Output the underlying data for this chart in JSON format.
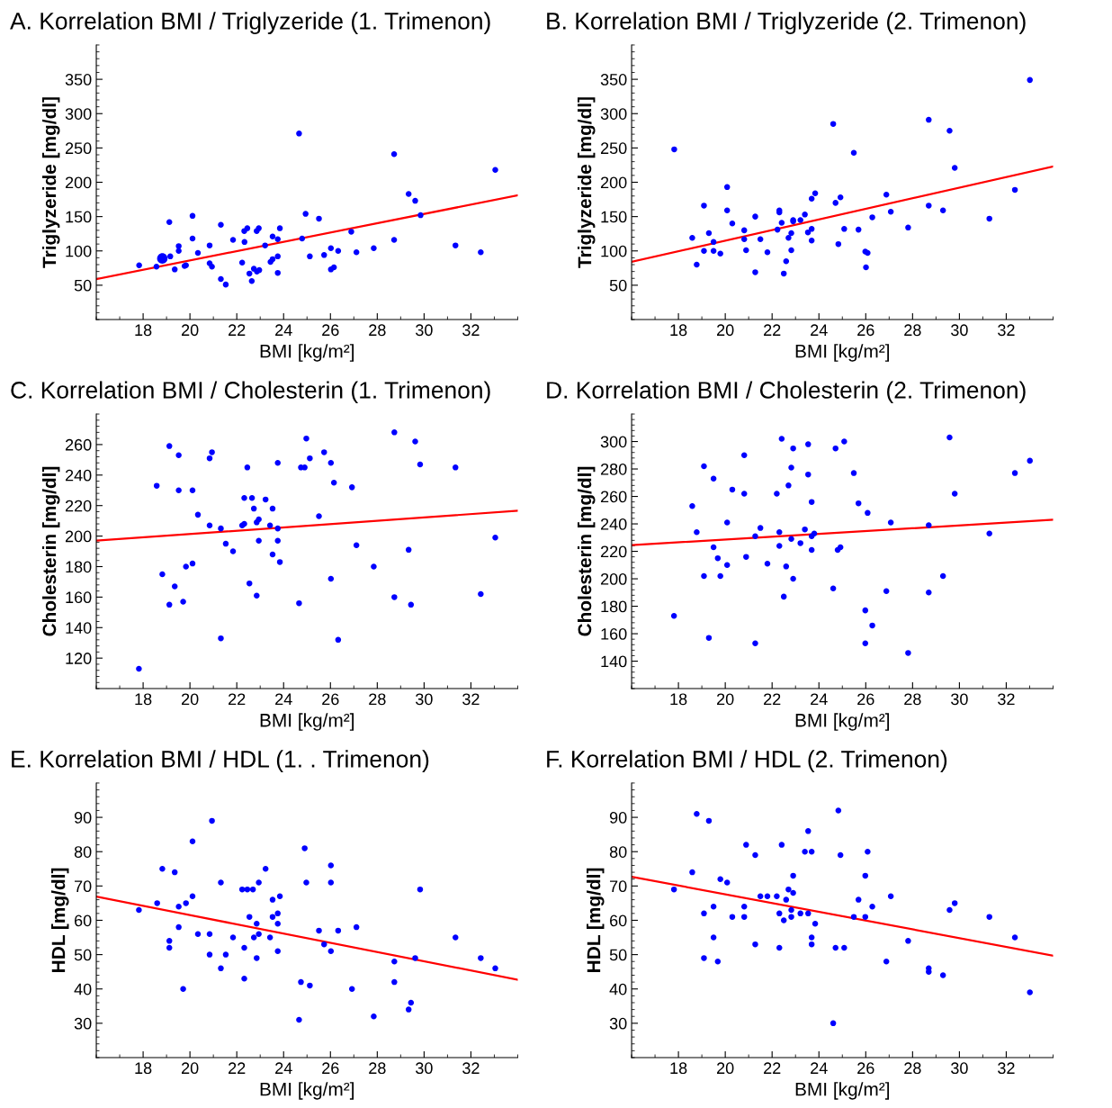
{
  "chart_data": [
    {
      "type": "scatter",
      "title": "A. Korrelation BMI / Triglyzeride (1. Trimenon)",
      "xlabel": "BMI [kg/m²]",
      "ylabel": "Triglyzeride [mg/dl]",
      "xlim": [
        16,
        34
      ],
      "xticks": [
        18,
        20,
        22,
        24,
        26,
        28,
        30,
        32
      ],
      "ylim": [
        0,
        400
      ],
      "yticks": [
        50,
        100,
        150,
        200,
        250,
        300,
        350
      ],
      "grid": false,
      "legend": false,
      "series": [
        {
          "type": "scatter",
          "color": "#0000ff",
          "marker": "circle",
          "x": [
            17.83,
            18.57,
            19.12,
            19.16,
            19.35,
            19.52,
            19.52,
            19.77,
            19.83,
            20.11,
            20.11,
            20.34,
            20.84,
            20.84,
            20.94,
            21.32,
            21.32,
            21.53,
            21.84,
            22.23,
            22.32,
            22.33,
            22.45,
            22.54,
            22.64,
            22.73,
            22.85,
            22.94,
            22.86,
            22.96,
            23.21,
            23.44,
            23.53,
            23.53,
            23.75,
            23.75,
            23.75,
            23.84,
            24.66,
            24.79,
            24.94,
            25.12,
            25.51,
            25.73,
            26.02,
            26.02,
            26.15,
            26.33,
            26.89,
            27.11,
            27.85,
            28.72,
            28.72,
            29.34,
            29.62,
            29.85,
            31.34,
            32.42,
            33.04
          ],
          "values": [
            79,
            77,
            142,
            92,
            73,
            107,
            100,
            78,
            79,
            151,
            118,
            97,
            108,
            82,
            77,
            138,
            59,
            51,
            116,
            83,
            129,
            113,
            133,
            67,
            56,
            74,
            129,
            133,
            70,
            72,
            108,
            84,
            121,
            88,
            117,
            92,
            68,
            133,
            271,
            118,
            154,
            92,
            147,
            94,
            104,
            73,
            76,
            100,
            128,
            98,
            104,
            241,
            116,
            183,
            173,
            152,
            108,
            98,
            218
          ]
        },
        {
          "type": "scatter",
          "color": "#0000ff",
          "marker": "circle",
          "x": [
            18.82
          ],
          "values": [
            89
          ]
        },
        {
          "type": "line",
          "color": "#ff0000",
          "x": [
            16,
            34
          ],
          "values": [
            59,
            181
          ]
        }
      ]
    },
    {
      "type": "scatter",
      "title": "B. Korrelation BMI / Triglyzeride (2. Trimenon)",
      "xlabel": "BMI [kg/m²]",
      "ylabel": "Triglyzeride [mg/dl]",
      "xlim": [
        16,
        34
      ],
      "xticks": [
        18,
        20,
        22,
        24,
        26,
        28,
        30,
        32
      ],
      "ylim": [
        0,
        400
      ],
      "yticks": [
        50,
        100,
        150,
        200,
        250,
        300,
        350
      ],
      "grid": false,
      "legend": false,
      "series": [
        {
          "type": "scatter",
          "color": "#0000ff",
          "marker": "circle",
          "x": [
            17.82,
            18.59,
            18.78,
            19.09,
            19.09,
            19.3,
            19.5,
            19.5,
            19.79,
            20.08,
            20.08,
            20.3,
            20.81,
            20.81,
            20.89,
            21.28,
            21.28,
            21.5,
            21.8,
            22.23,
            22.31,
            22.31,
            22.41,
            22.6,
            22.5,
            22.7,
            22.82,
            22.82,
            22.9,
            22.9,
            23.21,
            23.4,
            23.53,
            23.69,
            23.69,
            23.69,
            23.84,
            24.61,
            24.71,
            24.83,
            24.92,
            25.08,
            25.49,
            25.69,
            25.98,
            26.08,
            26.01,
            26.28,
            26.88,
            27.07,
            27.81,
            28.69,
            28.69,
            29.3,
            29.58,
            29.8,
            31.28,
            32.37,
            33.01
          ],
          "values": [
            248,
            119,
            80,
            166,
            100,
            126,
            113,
            100,
            96,
            193,
            159,
            140,
            130,
            117,
            101,
            150,
            69,
            117,
            98,
            131,
            159,
            156,
            141,
            85,
            67,
            119,
            126,
            101,
            145,
            143,
            145,
            153,
            127,
            132,
            115,
            176,
            184,
            285,
            170,
            110,
            178,
            132,
            243,
            131,
            99,
            97,
            76,
            149,
            182,
            157,
            134,
            291,
            166,
            159,
            275,
            221,
            147,
            189,
            349
          ]
        },
        {
          "type": "line",
          "color": "#ff0000",
          "x": [
            16,
            34
          ],
          "values": [
            84,
            223
          ]
        }
      ]
    },
    {
      "type": "scatter",
      "title": "C. Korrelation BMI / Cholesterin (1. Trimenon)",
      "xlabel": "BMI [kg/m²]",
      "ylabel": "Cholesterin [mg/dl]",
      "xlim": [
        16,
        34
      ],
      "xticks": [
        18,
        20,
        22,
        24,
        26,
        28,
        30,
        32
      ],
      "ylim": [
        100,
        280
      ],
      "yticks": [
        120,
        140,
        160,
        180,
        200,
        220,
        240,
        260
      ],
      "grid": false,
      "legend": false,
      "series": [
        {
          "type": "scatter",
          "color": "#0000ff",
          "marker": "circle",
          "x": [
            17.82,
            18.58,
            18.82,
            19.12,
            19.12,
            19.35,
            19.52,
            19.52,
            19.71,
            19.83,
            20.11,
            20.11,
            20.34,
            20.84,
            20.94,
            20.84,
            21.32,
            21.32,
            21.53,
            21.84,
            22.23,
            22.32,
            22.32,
            22.45,
            22.54,
            22.65,
            22.73,
            22.85,
            22.94,
            22.94,
            22.85,
            23.23,
            23.42,
            23.53,
            23.53,
            23.75,
            23.75,
            23.75,
            23.84,
            24.66,
            24.74,
            24.9,
            24.97,
            25.12,
            25.51,
            25.73,
            26.02,
            26.02,
            26.15,
            26.33,
            26.92,
            27.11,
            27.85,
            28.73,
            28.73,
            29.34,
            29.44,
            29.62,
            29.83,
            31.34,
            32.42,
            33.04
          ],
          "values": [
            113,
            233,
            175,
            259,
            155,
            167,
            253,
            230,
            157,
            180,
            230,
            182,
            214,
            251,
            255,
            207,
            205,
            133,
            195,
            190,
            207,
            208,
            225,
            245,
            169,
            225,
            218,
            209,
            211,
            197,
            161,
            224,
            207,
            218,
            188,
            248,
            205,
            197,
            183,
            156,
            245,
            245,
            264,
            251,
            213,
            255,
            248,
            172,
            235,
            132,
            232,
            194,
            180,
            268,
            160,
            191,
            155,
            262,
            247,
            245,
            162,
            199
          ]
        },
        {
          "type": "line",
          "color": "#ff0000",
          "x": [
            16,
            34
          ],
          "values": [
            197,
            216.6
          ]
        }
      ]
    },
    {
      "type": "scatter",
      "title": "D. Korrelation BMI / Cholesterin (2. Trimenon)",
      "xlabel": "BMI [kg/m²]",
      "ylabel": "Cholesterin [mg/dl]",
      "xlim": [
        16,
        34
      ],
      "xticks": [
        18,
        20,
        22,
        24,
        26,
        28,
        30,
        32
      ],
      "ylim": [
        120,
        320
      ],
      "yticks": [
        140,
        160,
        180,
        200,
        220,
        240,
        260,
        280,
        300
      ],
      "grid": false,
      "legend": false,
      "series": [
        {
          "type": "scatter",
          "color": "#0000ff",
          "marker": "circle",
          "x": [
            17.81,
            18.59,
            18.78,
            19.09,
            19.09,
            19.3,
            19.5,
            19.5,
            19.68,
            19.79,
            20.08,
            20.08,
            20.3,
            20.81,
            20.81,
            20.89,
            21.28,
            21.28,
            21.5,
            21.8,
            22.2,
            22.31,
            22.31,
            22.41,
            22.5,
            22.6,
            22.7,
            22.82,
            22.82,
            22.9,
            22.9,
            23.21,
            23.4,
            23.54,
            23.54,
            23.69,
            23.69,
            23.69,
            23.8,
            24.61,
            24.71,
            24.8,
            24.92,
            25.08,
            25.49,
            25.69,
            25.98,
            25.98,
            26.08,
            26.28,
            26.88,
            27.07,
            27.81,
            28.69,
            28.69,
            29.3,
            29.58,
            29.8,
            31.28,
            32.37,
            33.01
          ],
          "values": [
            173,
            253,
            234,
            282,
            202,
            157,
            273,
            223,
            215,
            202,
            241,
            210,
            265,
            290,
            262,
            216,
            231,
            153,
            237,
            211,
            262,
            234,
            224,
            302,
            187,
            209,
            268,
            281,
            229,
            295,
            200,
            226,
            236,
            298,
            276,
            256,
            231,
            221,
            233,
            193,
            295,
            221,
            223,
            300,
            277,
            255,
            177,
            153,
            248,
            166,
            191,
            241,
            146,
            239,
            190,
            202,
            303,
            262,
            233,
            277,
            286
          ]
        },
        {
          "type": "line",
          "color": "#ff0000",
          "x": [
            16,
            34
          ],
          "values": [
            224.5,
            243
          ]
        }
      ]
    },
    {
      "type": "scatter",
      "title": "E. Korrelation BMI / HDL (1. . Trimenon)",
      "xlabel": "BMI [kg/m²]",
      "ylabel": "HDL [mg/dl]",
      "xlim": [
        16,
        34
      ],
      "xticks": [
        18,
        20,
        22,
        24,
        26,
        28,
        30,
        32
      ],
      "ylim": [
        20,
        100
      ],
      "yticks": [
        30,
        40,
        50,
        60,
        70,
        80,
        90
      ],
      "grid": false,
      "legend": false,
      "series": [
        {
          "type": "scatter",
          "color": "#0000ff",
          "marker": "circle",
          "x": [
            17.82,
            18.6,
            18.82,
            19.12,
            19.12,
            19.35,
            19.52,
            19.52,
            19.71,
            19.83,
            20.11,
            20.11,
            20.34,
            20.84,
            20.84,
            20.94,
            21.32,
            21.32,
            21.53,
            21.84,
            22.23,
            22.32,
            22.32,
            22.45,
            22.54,
            22.69,
            22.73,
            22.85,
            22.94,
            22.94,
            22.85,
            23.23,
            23.42,
            23.53,
            23.53,
            23.75,
            23.75,
            23.75,
            23.84,
            24.66,
            24.74,
            24.9,
            24.97,
            25.12,
            25.51,
            25.73,
            26.02,
            26.02,
            26.02,
            26.33,
            26.92,
            27.11,
            27.85,
            28.73,
            28.73,
            29.34,
            29.44,
            29.62,
            29.83,
            31.34,
            32.42,
            33.04
          ],
          "values": [
            63,
            65,
            75,
            54,
            52,
            74,
            64,
            58,
            40,
            65,
            83,
            67,
            56,
            56,
            50,
            89,
            71,
            46,
            50,
            55,
            69,
            52,
            43,
            69,
            61,
            69,
            55,
            59,
            71,
            56,
            49,
            75,
            55,
            66,
            61,
            62,
            59,
            51,
            67,
            31,
            42,
            81,
            71,
            41,
            57,
            53,
            76,
            71,
            51,
            57,
            40,
            58,
            32,
            48,
            42,
            34,
            36,
            49,
            69,
            55,
            49,
            46
          ]
        },
        {
          "type": "line",
          "color": "#ff0000",
          "x": [
            16,
            34
          ],
          "values": [
            66.9,
            42.7
          ]
        }
      ]
    },
    {
      "type": "scatter",
      "title": "F. Korrelation BMI / HDL (2. Trimenon)",
      "xlabel": "BMI [kg/m²]",
      "ylabel": "HDL [mg/dl]",
      "xlim": [
        16,
        34
      ],
      "xticks": [
        18,
        20,
        22,
        24,
        26,
        28,
        30,
        32
      ],
      "ylim": [
        20,
        100
      ],
      "yticks": [
        30,
        40,
        50,
        60,
        70,
        80,
        90
      ],
      "grid": false,
      "legend": false,
      "series": [
        {
          "type": "scatter",
          "color": "#0000ff",
          "marker": "circle",
          "x": [
            17.81,
            18.59,
            18.78,
            19.09,
            19.09,
            19.3,
            19.5,
            19.5,
            19.68,
            19.79,
            20.08,
            20.3,
            20.81,
            20.81,
            20.89,
            21.28,
            21.28,
            21.5,
            21.8,
            22.2,
            22.31,
            22.31,
            22.41,
            22.5,
            22.6,
            22.7,
            22.82,
            22.82,
            22.9,
            22.9,
            23.21,
            23.4,
            23.54,
            23.54,
            23.69,
            23.69,
            23.69,
            23.84,
            24.61,
            24.71,
            24.83,
            24.92,
            25.08,
            25.49,
            25.69,
            25.98,
            25.98,
            26.08,
            26.28,
            26.88,
            27.07,
            27.81,
            28.69,
            28.69,
            29.3,
            29.58,
            29.8,
            31.28,
            32.37,
            33.01
          ],
          "values": [
            69,
            74,
            91,
            62,
            49,
            89,
            64,
            55,
            48,
            72,
            71,
            61,
            64,
            61,
            82,
            79,
            53,
            67,
            67,
            67,
            62,
            52,
            82,
            60,
            66,
            69,
            63,
            61,
            73,
            68,
            62,
            80,
            62,
            86,
            80,
            55,
            53,
            59,
            30,
            52,
            92,
            79,
            52,
            61,
            66,
            73,
            61,
            80,
            64,
            48,
            67,
            54,
            46,
            45,
            44,
            63,
            65,
            61,
            55,
            39
          ]
        },
        {
          "type": "line",
          "color": "#ff0000",
          "x": [
            16,
            34
          ],
          "values": [
            72.7,
            49.7
          ]
        }
      ]
    }
  ]
}
